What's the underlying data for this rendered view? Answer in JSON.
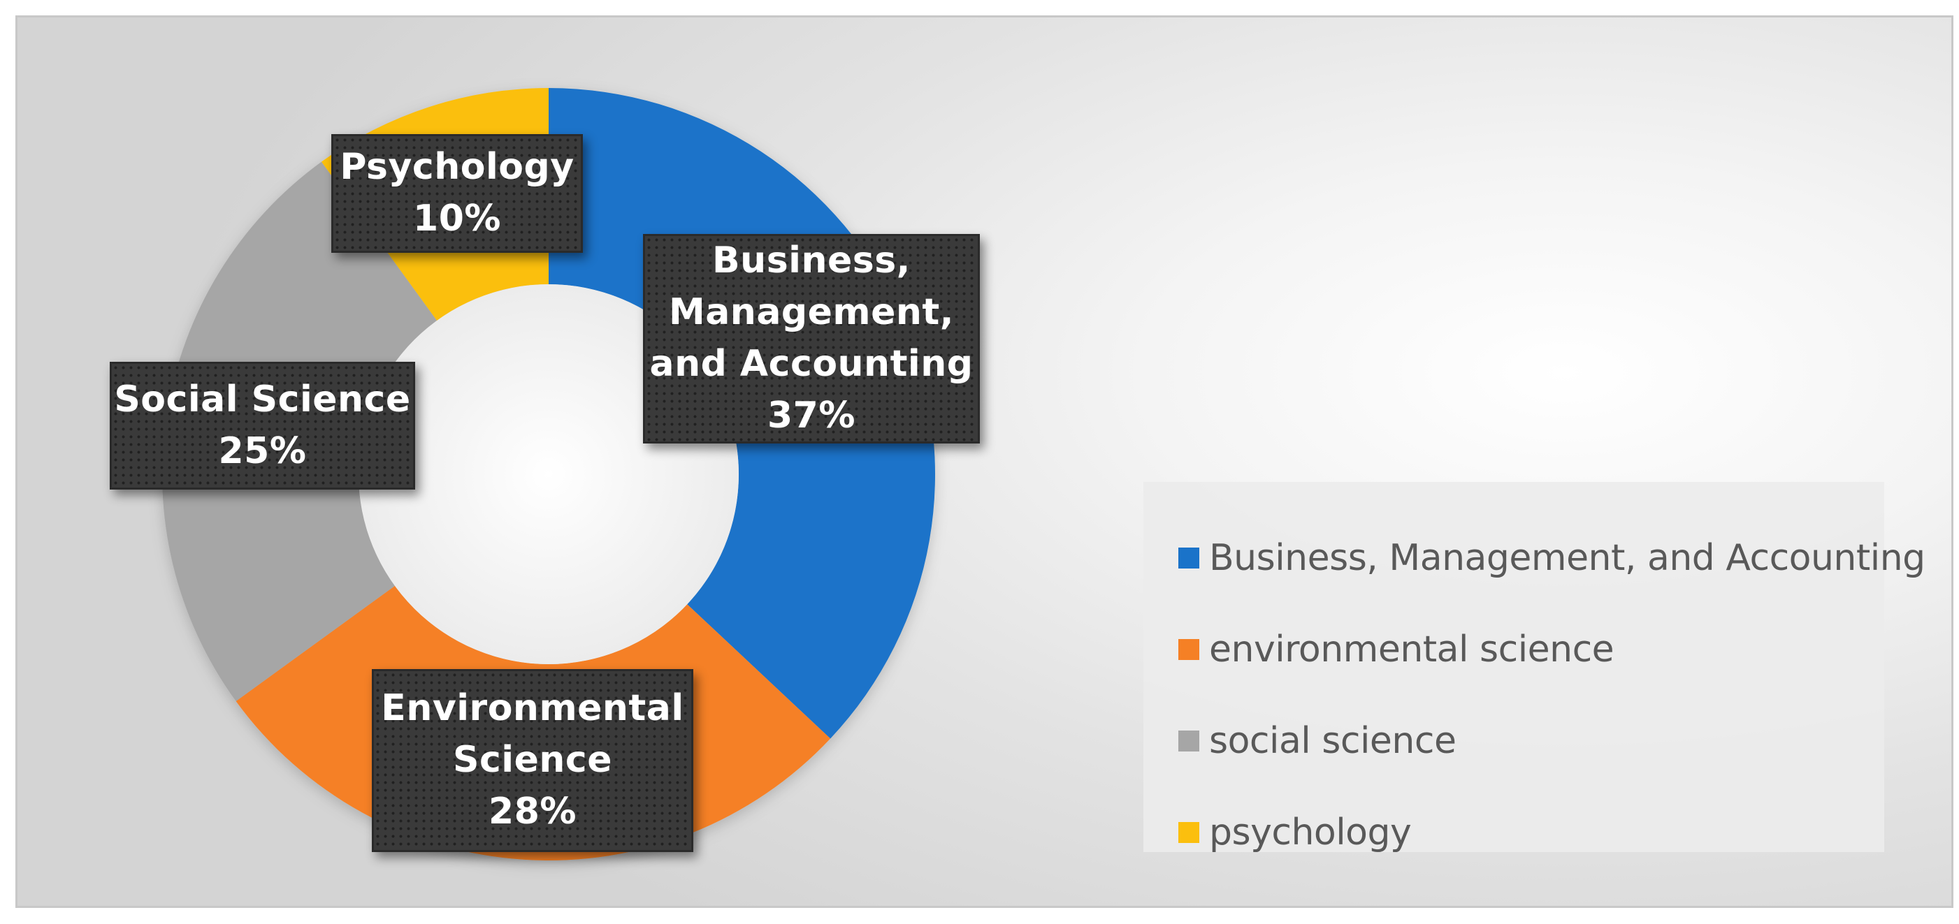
{
  "chart_data": {
    "type": "pie",
    "subtype": "doughnut",
    "categories": [
      "Business, Management, and Accounting",
      "environmental science",
      "social science",
      "psychology"
    ],
    "values": [
      37,
      28,
      25,
      10
    ],
    "unit": "%",
    "colors": [
      "#1a73c9",
      "#f58025",
      "#a6a6a6",
      "#fbbf0e"
    ],
    "data_labels": [
      {
        "name": "Business,\nManagement,\nand Accounting",
        "value": "37%"
      },
      {
        "name": "Environmental\nScience",
        "value": "28%"
      },
      {
        "name": "Social Science",
        "value": "25%"
      },
      {
        "name": "Psychology",
        "value": "10%"
      }
    ],
    "legend": {
      "position": "right",
      "entries": [
        "Business, Management, and Accounting",
        "environmental science",
        "social science",
        "psychology"
      ]
    },
    "title": ""
  }
}
